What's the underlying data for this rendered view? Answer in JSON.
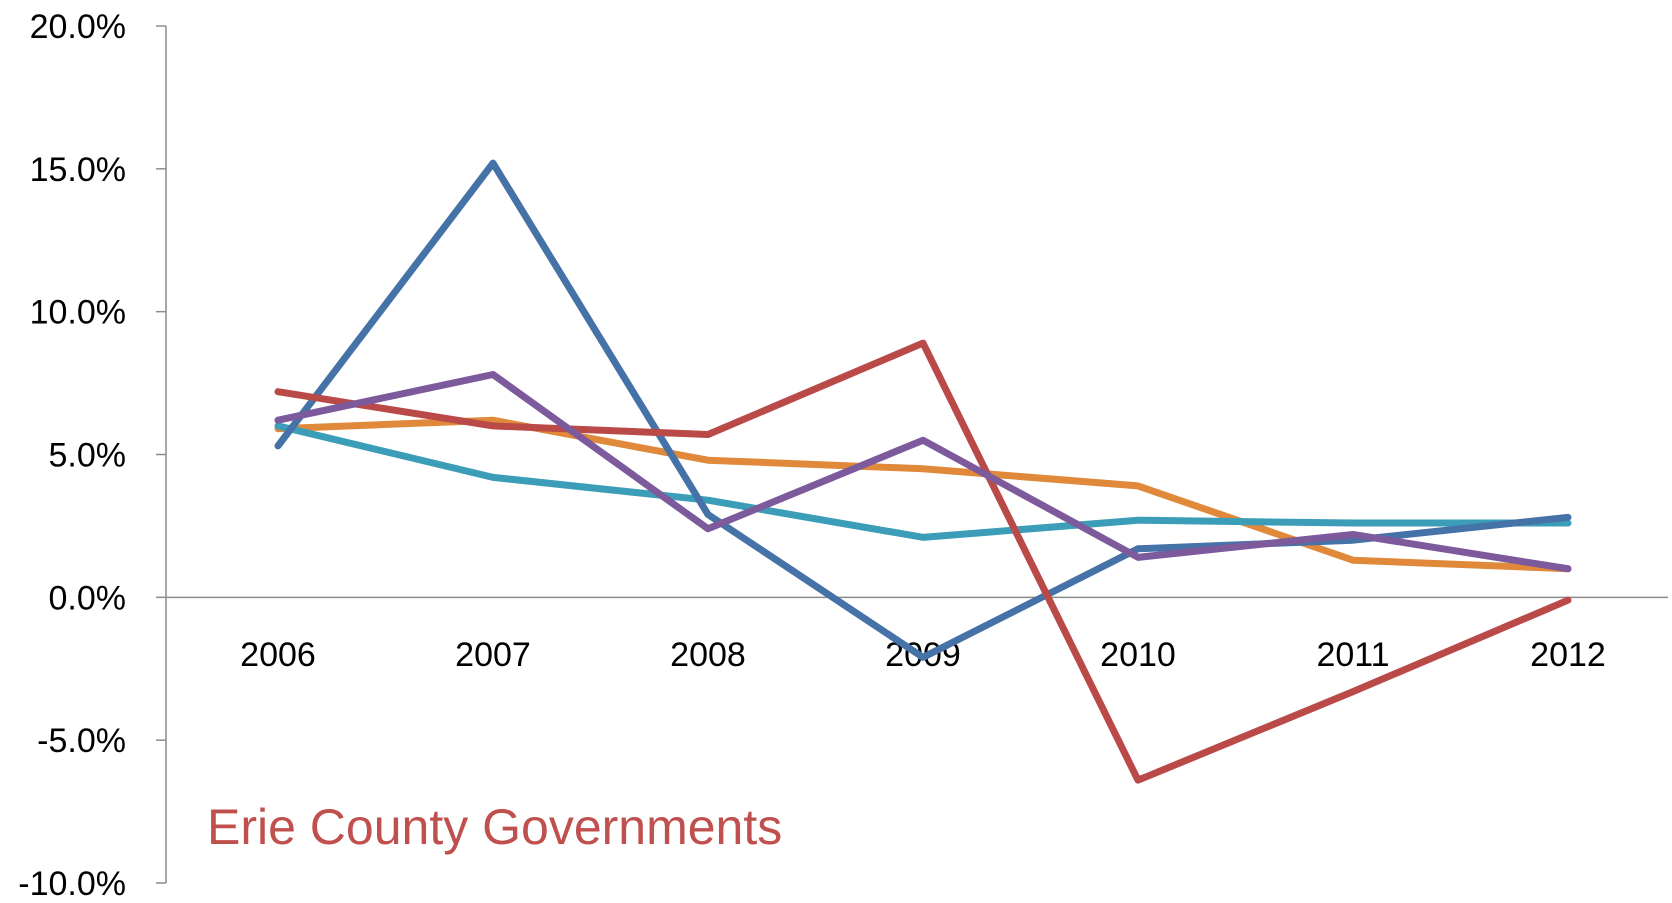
{
  "chart_data": {
    "type": "line",
    "title": "",
    "xlabel": "",
    "ylabel": "",
    "categories": [
      "2006",
      "2007",
      "2008",
      "2009",
      "2010",
      "2011",
      "2012"
    ],
    "ylim": [
      -0.1,
      0.2
    ],
    "yticks": [
      {
        "value": 0.2,
        "label": "20.0%"
      },
      {
        "value": 0.15,
        "label": "15.0%"
      },
      {
        "value": 0.1,
        "label": "10.0%"
      },
      {
        "value": 0.05,
        "label": "5.0%"
      },
      {
        "value": 0.0,
        "label": "0.0%"
      },
      {
        "value": -0.05,
        "label": "-5.0%"
      },
      {
        "value": -0.1,
        "label": "-10.0%"
      }
    ],
    "grid": false,
    "legend": "none",
    "series": [
      {
        "color": "#E0893A",
        "values": [
          0.059,
          0.062,
          0.048,
          0.045,
          0.039,
          0.013,
          0.01
        ]
      },
      {
        "color": "#3C9DB8",
        "values": [
          0.06,
          0.042,
          0.034,
          0.021,
          0.027,
          0.026,
          0.026
        ]
      },
      {
        "color": "#4572A7",
        "values": [
          0.053,
          0.152,
          0.029,
          -0.021,
          0.017,
          0.02,
          0.028
        ]
      },
      {
        "color": "#B94A48",
        "values": [
          0.072,
          0.06,
          0.057,
          0.089,
          -0.064,
          -0.033,
          -0.001
        ]
      },
      {
        "color": "#7D5A9C",
        "values": [
          0.062,
          0.078,
          0.024,
          0.055,
          0.014,
          0.022,
          0.01
        ]
      }
    ],
    "annotation": {
      "text": "Erie County Governments",
      "color": "#C0504D"
    },
    "axis_color": "#8C8C8C"
  }
}
